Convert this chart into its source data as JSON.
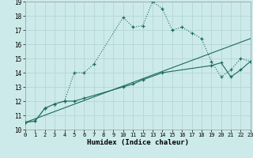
{
  "xlabel": "Humidex (Indice chaleur)",
  "bg_color": "#cdeaea",
  "grid_color": "#b8d8d8",
  "line_color": "#1a6b5a",
  "xlim": [
    0,
    23
  ],
  "ylim": [
    10,
    19
  ],
  "xticks": [
    0,
    1,
    2,
    3,
    4,
    5,
    6,
    7,
    8,
    9,
    10,
    11,
    12,
    13,
    14,
    15,
    16,
    17,
    18,
    19,
    20,
    21,
    22,
    23
  ],
  "yticks": [
    10,
    11,
    12,
    13,
    14,
    15,
    16,
    17,
    18,
    19
  ],
  "series1_x": [
    0,
    1,
    2,
    3,
    4,
    5,
    6,
    7,
    10,
    11,
    12,
    13,
    14,
    15,
    16,
    17,
    18,
    19,
    20,
    21,
    22,
    23
  ],
  "series1_y": [
    10.5,
    10.6,
    11.5,
    11.8,
    12.0,
    14.0,
    14.0,
    14.6,
    17.9,
    17.2,
    17.3,
    19.0,
    18.5,
    17.0,
    17.2,
    16.8,
    16.4,
    14.8,
    13.7,
    14.2,
    15.0,
    14.8
  ],
  "series2_x": [
    0,
    1,
    2,
    3,
    4,
    5,
    6,
    10,
    11,
    12,
    14,
    19,
    20,
    21,
    22,
    23
  ],
  "series2_y": [
    10.5,
    10.6,
    11.5,
    11.8,
    12.0,
    12.0,
    12.2,
    13.0,
    13.2,
    13.5,
    14.0,
    14.5,
    14.7,
    13.7,
    14.2,
    14.8
  ],
  "series3_x": [
    0,
    23
  ],
  "series3_y": [
    10.5,
    16.4
  ]
}
